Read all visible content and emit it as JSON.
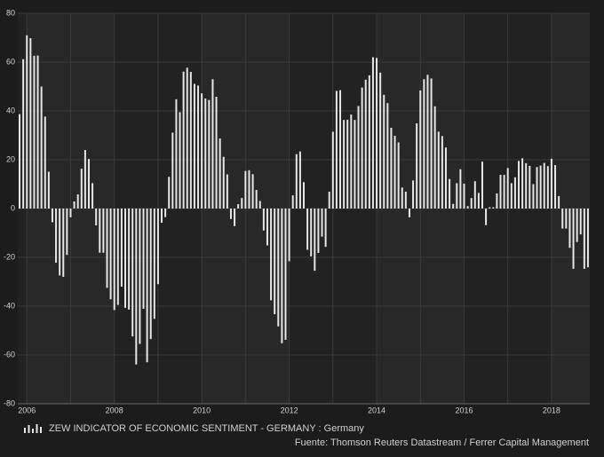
{
  "chart_data": {
    "type": "bar",
    "categories": [
      null,
      null,
      "2006",
      null,
      null,
      null,
      null,
      null,
      null,
      null,
      null,
      null,
      null,
      null,
      null,
      null,
      null,
      null,
      null,
      null,
      null,
      null,
      null,
      null,
      null,
      null,
      "2008",
      null,
      null,
      null,
      null,
      null,
      null,
      null,
      null,
      null,
      null,
      null,
      null,
      null,
      null,
      null,
      null,
      null,
      null,
      null,
      null,
      null,
      null,
      null,
      "2010",
      null,
      null,
      null,
      null,
      null,
      null,
      null,
      null,
      null,
      null,
      null,
      null,
      null,
      null,
      null,
      null,
      null,
      null,
      null,
      null,
      null,
      null,
      null,
      "2012",
      null,
      null,
      null,
      null,
      null,
      null,
      null,
      null,
      null,
      null,
      null,
      null,
      null,
      null,
      null,
      null,
      null,
      null,
      null,
      null,
      null,
      null,
      null,
      "2014",
      null,
      null,
      null,
      null,
      null,
      null,
      null,
      null,
      null,
      null,
      null,
      null,
      null,
      null,
      null,
      null,
      null,
      null,
      null,
      null,
      null,
      null,
      null,
      "2016",
      null,
      null,
      null,
      null,
      null,
      null,
      null,
      null,
      null,
      null,
      null,
      null,
      null,
      null,
      null,
      null,
      null,
      null,
      null,
      null,
      null,
      null,
      null,
      "2018",
      null,
      null,
      null,
      null,
      null,
      null,
      null,
      null,
      null,
      null
    ],
    "series": [
      {
        "name": "ZEW INDICATOR OF ECONOMIC SENTIMENT - GERMANY : Germany",
        "color": "#e6e6e6",
        "values": [
          38.7,
          61.2,
          71.0,
          69.8,
          62.6,
          62.7,
          50.0,
          37.7,
          15.1,
          -5.6,
          -22.2,
          -27.4,
          -28.0,
          -19.0,
          -3.6,
          2.9,
          5.8,
          16.3,
          24.0,
          20.3,
          10.4,
          -6.9,
          -18.1,
          -18.1,
          -32.5,
          -37.2,
          -41.6,
          -39.5,
          -32.0,
          -40.7,
          -41.4,
          -52.4,
          -63.9,
          -55.5,
          -41.1,
          -63.0,
          -53.5,
          -45.2,
          -31.0,
          -5.8,
          -3.5,
          13.0,
          31.1,
          44.8,
          39.5,
          56.1,
          57.7,
          56.0,
          51.1,
          50.4,
          47.2,
          45.1,
          44.5,
          53.0,
          45.8,
          28.7,
          21.2,
          14.0,
          -4.3,
          -7.2,
          1.8,
          4.3,
          15.4,
          15.7,
          14.1,
          7.6,
          3.1,
          -9.0,
          -15.1,
          -37.6,
          -43.3,
          -48.3,
          -55.2,
          -53.8,
          -21.6,
          5.4,
          22.3,
          23.4,
          10.8,
          -16.9,
          -19.6,
          -25.5,
          -18.2,
          -11.5,
          -15.7,
          6.9,
          31.5,
          48.2,
          48.5,
          36.3,
          36.4,
          38.5,
          36.3,
          42.0,
          49.6,
          52.8,
          54.6,
          62.0,
          61.7,
          55.7,
          46.6,
          43.2,
          33.1,
          29.8,
          27.1,
          8.6,
          6.9,
          -3.6,
          11.5,
          34.9,
          48.4,
          53.0,
          54.8,
          53.3,
          41.9,
          31.5,
          29.7,
          25.0,
          12.1,
          1.9,
          10.4,
          16.1,
          10.2,
          1.0,
          4.3,
          11.2,
          6.4,
          19.2,
          -6.8,
          0.5,
          0.5,
          6.2,
          13.8,
          13.8,
          16.6,
          10.4,
          12.8,
          19.5,
          20.6,
          18.6,
          17.5,
          10.0,
          17.0,
          17.6,
          18.7,
          17.4,
          20.4,
          17.8,
          5.1,
          -8.2,
          -8.2,
          -16.1,
          -24.7,
          -13.7,
          -10.6,
          -24.7,
          -24.1
        ]
      }
    ],
    "ylim": [
      -80,
      80
    ],
    "yticks": [
      -80,
      -60,
      -40,
      -20,
      0,
      20,
      40,
      60,
      80
    ],
    "grid": true,
    "source": "Fuente: Thomson Reuters Datastream / Ferrer Capital Management"
  }
}
